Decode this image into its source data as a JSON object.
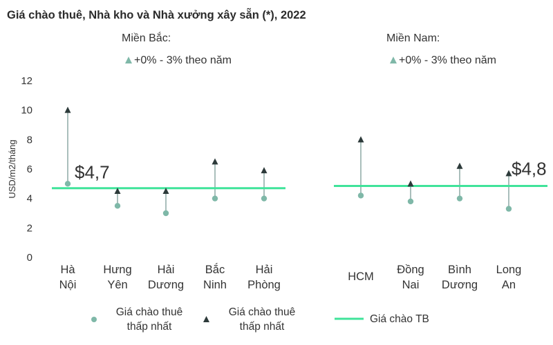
{
  "title": "Giá chào thuê, Nhà kho và Nhà xưởng xây sẵn (*), 2022",
  "colors": {
    "low_marker": "#7fb8a8",
    "high_marker": "#2d3a3a",
    "average_line": "#3fe39a",
    "stem": "#7b9c96",
    "growth_icon": "#7fb8a8"
  },
  "regions": [
    {
      "name": "Miền Bắc:",
      "growth_icon": "triangle-up-icon",
      "growth_note": "+0% - 3% theo năm"
    },
    {
      "name": "Miền Nam:",
      "growth_icon": "triangle-up-icon",
      "growth_note": "+0% - 3% theo năm"
    }
  ],
  "chart_data": {
    "type": "scatter",
    "ylabel": "USD/m2/tháng",
    "ylim": [
      0,
      12
    ],
    "yticks": [
      "0",
      "2",
      "4",
      "6",
      "8",
      "10",
      "12"
    ],
    "groups": [
      {
        "region": "Miền Bắc",
        "categories": [
          [
            "Hà",
            "Nội"
          ],
          [
            "Hưng",
            "Yên"
          ],
          [
            "Hải",
            "Dương"
          ],
          [
            "Bắc",
            "Ninh"
          ],
          [
            "Hải",
            "Phòng"
          ]
        ],
        "low": [
          5.0,
          3.5,
          3.0,
          4.0,
          4.0
        ],
        "high": [
          10.0,
          4.5,
          4.5,
          6.5,
          5.9
        ],
        "average": 4.7,
        "average_label": "$4,7"
      },
      {
        "region": "Miền Nam",
        "categories": [
          [
            "HCM"
          ],
          [
            "Đồng",
            "Nai"
          ],
          [
            "Bình",
            "Dương"
          ],
          [
            "Long",
            "An"
          ]
        ],
        "low": [
          4.2,
          3.8,
          4.0,
          3.3
        ],
        "high": [
          8.0,
          5.0,
          6.2,
          5.7
        ],
        "average": 4.85,
        "average_label": "$4,8"
      }
    ],
    "legend": [
      {
        "marker": "circle",
        "label": [
          "Giá chào thuê",
          "thấp nhất"
        ]
      },
      {
        "marker": "triangle",
        "label": [
          "Giá chào thuê",
          "thấp nhất"
        ]
      },
      {
        "marker": "line",
        "label": [
          "Giá chào TB"
        ]
      }
    ]
  }
}
